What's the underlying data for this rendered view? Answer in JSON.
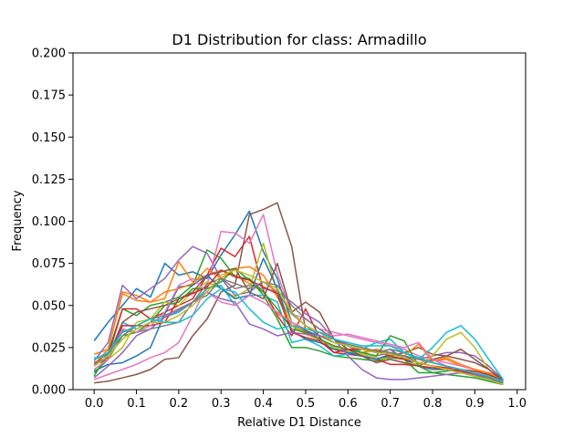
{
  "chart_data": {
    "type": "line",
    "title": "D1 Distribution for class: Armadillo",
    "xlabel": "Relative D1 Distance",
    "ylabel": "Frequency",
    "xlim": [
      -0.05,
      1.02
    ],
    "ylim": [
      0,
      0.2
    ],
    "grid": false,
    "legend": "none",
    "x_ticks": [
      "0.0",
      "0.1",
      "0.2",
      "0.3",
      "0.4",
      "0.5",
      "0.6",
      "0.7",
      "0.8",
      "0.9",
      "1.0"
    ],
    "y_ticks": [
      "0.000",
      "0.025",
      "0.050",
      "0.075",
      "0.100",
      "0.125",
      "0.150",
      "0.175",
      "0.200"
    ],
    "x": [
      0.0,
      0.033,
      0.067,
      0.1,
      0.133,
      0.167,
      0.2,
      0.233,
      0.267,
      0.3,
      0.333,
      0.367,
      0.4,
      0.433,
      0.467,
      0.5,
      0.533,
      0.567,
      0.6,
      0.633,
      0.667,
      0.7,
      0.733,
      0.767,
      0.8,
      0.833,
      0.867,
      0.9,
      0.933,
      0.967
    ],
    "series": [
      {
        "color": "#1f77b4",
        "values": [
          0.029,
          0.04,
          0.05,
          0.06,
          0.055,
          0.075,
          0.068,
          0.07,
          0.066,
          0.08,
          0.092,
          0.106,
          0.082,
          0.066,
          0.04,
          0.035,
          0.032,
          0.028,
          0.026,
          0.024,
          0.022,
          0.024,
          0.018,
          0.014,
          0.012,
          0.012,
          0.01,
          0.009,
          0.008,
          0.005
        ]
      },
      {
        "color": "#ff7f0e",
        "values": [
          0.021,
          0.024,
          0.058,
          0.056,
          0.052,
          0.054,
          0.076,
          0.064,
          0.068,
          0.071,
          0.068,
          0.063,
          0.058,
          0.045,
          0.04,
          0.034,
          0.03,
          0.026,
          0.024,
          0.022,
          0.024,
          0.022,
          0.02,
          0.018,
          0.017,
          0.018,
          0.014,
          0.012,
          0.01,
          0.006
        ]
      },
      {
        "color": "#2ca02c",
        "values": [
          0.008,
          0.022,
          0.048,
          0.044,
          0.05,
          0.052,
          0.055,
          0.062,
          0.083,
          0.078,
          0.067,
          0.066,
          0.056,
          0.042,
          0.025,
          0.025,
          0.023,
          0.02,
          0.019,
          0.018,
          0.017,
          0.019,
          0.018,
          0.01,
          0.01,
          0.011,
          0.012,
          0.009,
          0.006,
          0.004
        ]
      },
      {
        "color": "#d62728",
        "values": [
          0.014,
          0.02,
          0.048,
          0.048,
          0.042,
          0.046,
          0.05,
          0.054,
          0.068,
          0.084,
          0.079,
          0.091,
          0.059,
          0.044,
          0.032,
          0.048,
          0.031,
          0.022,
          0.021,
          0.02,
          0.018,
          0.015,
          0.015,
          0.014,
          0.013,
          0.012,
          0.011,
          0.009,
          0.007,
          0.005
        ]
      },
      {
        "color": "#9467bd",
        "values": [
          0.017,
          0.028,
          0.062,
          0.054,
          0.06,
          0.066,
          0.077,
          0.085,
          0.081,
          0.066,
          0.056,
          0.058,
          0.064,
          0.058,
          0.052,
          0.045,
          0.04,
          0.03,
          0.026,
          0.022,
          0.02,
          0.022,
          0.02,
          0.018,
          0.02,
          0.022,
          0.022,
          0.02,
          0.014,
          0.006
        ]
      },
      {
        "color": "#8c564b",
        "values": [
          0.004,
          0.005,
          0.007,
          0.009,
          0.012,
          0.018,
          0.019,
          0.032,
          0.042,
          0.058,
          0.062,
          0.104,
          0.107,
          0.111,
          0.085,
          0.035,
          0.03,
          0.025,
          0.022,
          0.02,
          0.018,
          0.02,
          0.022,
          0.025,
          0.021,
          0.02,
          0.018,
          0.016,
          0.012,
          0.006
        ]
      },
      {
        "color": "#e377c2",
        "values": [
          0.006,
          0.009,
          0.012,
          0.015,
          0.019,
          0.022,
          0.028,
          0.044,
          0.062,
          0.094,
          0.093,
          0.087,
          0.104,
          0.069,
          0.045,
          0.042,
          0.036,
          0.034,
          0.032,
          0.03,
          0.028,
          0.026,
          0.024,
          0.02,
          0.018,
          0.016,
          0.014,
          0.012,
          0.008,
          0.004
        ]
      },
      {
        "color": "#7f7f7f",
        "values": [
          0.018,
          0.021,
          0.035,
          0.034,
          0.036,
          0.038,
          0.04,
          0.052,
          0.063,
          0.066,
          0.06,
          0.062,
          0.06,
          0.058,
          0.045,
          0.038,
          0.032,
          0.028,
          0.026,
          0.024,
          0.022,
          0.024,
          0.022,
          0.018,
          0.016,
          0.014,
          0.012,
          0.01,
          0.008,
          0.005
        ]
      },
      {
        "color": "#bcbd22",
        "values": [
          0.012,
          0.018,
          0.025,
          0.04,
          0.042,
          0.052,
          0.05,
          0.058,
          0.064,
          0.06,
          0.055,
          0.06,
          0.087,
          0.058,
          0.04,
          0.033,
          0.03,
          0.025,
          0.023,
          0.021,
          0.019,
          0.018,
          0.016,
          0.015,
          0.02,
          0.03,
          0.034,
          0.025,
          0.012,
          0.004
        ]
      },
      {
        "color": "#17becf",
        "values": [
          0.019,
          0.02,
          0.04,
          0.036,
          0.04,
          0.043,
          0.046,
          0.052,
          0.06,
          0.062,
          0.05,
          0.056,
          0.056,
          0.052,
          0.028,
          0.03,
          0.026,
          0.02,
          0.021,
          0.024,
          0.028,
          0.03,
          0.022,
          0.018,
          0.025,
          0.034,
          0.038,
          0.03,
          0.018,
          0.006
        ]
      },
      {
        "color": "#1f77b4",
        "values": [
          0.011,
          0.015,
          0.016,
          0.02,
          0.025,
          0.045,
          0.061,
          0.062,
          0.068,
          0.06,
          0.054,
          0.056,
          0.078,
          0.06,
          0.035,
          0.03,
          0.028,
          0.024,
          0.022,
          0.02,
          0.018,
          0.021,
          0.02,
          0.016,
          0.014,
          0.012,
          0.01,
          0.008,
          0.006,
          0.004
        ]
      },
      {
        "color": "#ff7f0e",
        "values": [
          0.015,
          0.024,
          0.057,
          0.053,
          0.052,
          0.058,
          0.06,
          0.063,
          0.072,
          0.066,
          0.072,
          0.073,
          0.068,
          0.055,
          0.038,
          0.033,
          0.03,
          0.026,
          0.024,
          0.022,
          0.023,
          0.022,
          0.02,
          0.027,
          0.017,
          0.019,
          0.015,
          0.012,
          0.01,
          0.005
        ]
      },
      {
        "color": "#2ca02c",
        "values": [
          0.01,
          0.018,
          0.032,
          0.034,
          0.04,
          0.05,
          0.052,
          0.06,
          0.06,
          0.064,
          0.072,
          0.065,
          0.058,
          0.048,
          0.036,
          0.034,
          0.03,
          0.026,
          0.024,
          0.022,
          0.02,
          0.032,
          0.029,
          0.014,
          0.01,
          0.009,
          0.008,
          0.007,
          0.005,
          0.003
        ]
      },
      {
        "color": "#d62728",
        "values": [
          0.016,
          0.019,
          0.038,
          0.038,
          0.038,
          0.04,
          0.054,
          0.057,
          0.061,
          0.071,
          0.067,
          0.065,
          0.061,
          0.057,
          0.034,
          0.031,
          0.029,
          0.022,
          0.024,
          0.024,
          0.023,
          0.02,
          0.018,
          0.016,
          0.014,
          0.013,
          0.012,
          0.011,
          0.009,
          0.005
        ]
      },
      {
        "color": "#9467bd",
        "values": [
          0.007,
          0.014,
          0.022,
          0.032,
          0.036,
          0.043,
          0.047,
          0.052,
          0.058,
          0.054,
          0.052,
          0.039,
          0.036,
          0.032,
          0.034,
          0.033,
          0.032,
          0.03,
          0.02,
          0.012,
          0.007,
          0.006,
          0.006,
          0.007,
          0.008,
          0.009,
          0.01,
          0.009,
          0.007,
          0.005
        ]
      },
      {
        "color": "#8c564b",
        "values": [
          0.015,
          0.018,
          0.04,
          0.046,
          0.048,
          0.05,
          0.054,
          0.058,
          0.068,
          0.07,
          0.072,
          0.058,
          0.054,
          0.075,
          0.046,
          0.052,
          0.046,
          0.03,
          0.024,
          0.02,
          0.016,
          0.018,
          0.016,
          0.014,
          0.018,
          0.02,
          0.024,
          0.018,
          0.012,
          0.005
        ]
      },
      {
        "color": "#e377c2",
        "values": [
          0.012,
          0.018,
          0.036,
          0.034,
          0.038,
          0.046,
          0.062,
          0.066,
          0.058,
          0.052,
          0.05,
          0.056,
          0.052,
          0.046,
          0.04,
          0.036,
          0.034,
          0.032,
          0.033,
          0.031,
          0.029,
          0.027,
          0.025,
          0.028,
          0.018,
          0.014,
          0.012,
          0.01,
          0.008,
          0.004
        ]
      },
      {
        "color": "#7f7f7f",
        "values": [
          0.015,
          0.022,
          0.032,
          0.038,
          0.042,
          0.044,
          0.048,
          0.052,
          0.056,
          0.066,
          0.063,
          0.06,
          0.064,
          0.062,
          0.05,
          0.042,
          0.036,
          0.03,
          0.027,
          0.025,
          0.023,
          0.022,
          0.02,
          0.018,
          0.016,
          0.014,
          0.012,
          0.01,
          0.007,
          0.004
        ]
      },
      {
        "color": "#bcbd22",
        "values": [
          0.014,
          0.02,
          0.03,
          0.036,
          0.04,
          0.04,
          0.044,
          0.05,
          0.058,
          0.068,
          0.071,
          0.068,
          0.064,
          0.06,
          0.046,
          0.038,
          0.034,
          0.028,
          0.026,
          0.024,
          0.022,
          0.021,
          0.019,
          0.016,
          0.014,
          0.012,
          0.01,
          0.008,
          0.006,
          0.003
        ]
      },
      {
        "color": "#17becf",
        "values": [
          0.018,
          0.022,
          0.034,
          0.038,
          0.042,
          0.04,
          0.04,
          0.044,
          0.054,
          0.06,
          0.058,
          0.048,
          0.04,
          0.036,
          0.038,
          0.036,
          0.034,
          0.03,
          0.028,
          0.026,
          0.026,
          0.026,
          0.022,
          0.019,
          0.016,
          0.014,
          0.012,
          0.01,
          0.008,
          0.005
        ]
      }
    ]
  }
}
